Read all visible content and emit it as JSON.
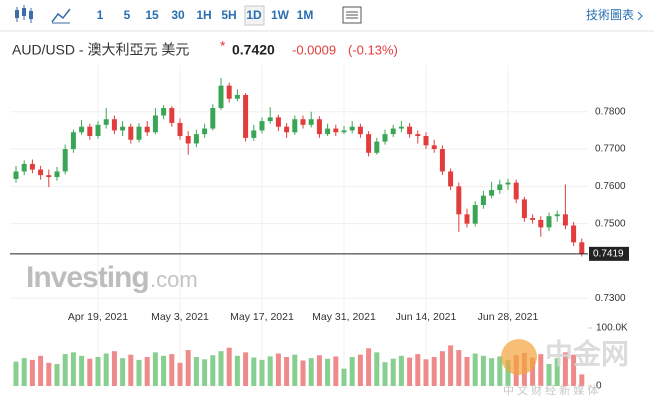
{
  "toolbar": {
    "intervals": [
      "1",
      "5",
      "15",
      "30",
      "1H",
      "5H",
      "1D",
      "1W",
      "1M"
    ],
    "selected": "1D",
    "link": "技術圖表"
  },
  "header": {
    "pair": "AUD/USD - 澳大利亞元 美元",
    "star": "*",
    "price": "0.7420",
    "change": "-0.0009",
    "change_pct": "(-0.13%)"
  },
  "watermark": {
    "brand": "Investing",
    "domain": ".com",
    "logo": "中金网",
    "slogan": "中 文 财 经 新 媒 体"
  },
  "chart_data": [
    {
      "type": "candlestick",
      "categories": [
        null,
        null,
        null,
        null,
        null,
        null,
        null,
        null,
        null,
        null,
        "Apr 19, 2021",
        null,
        null,
        null,
        null,
        null,
        null,
        null,
        null,
        null,
        "May 3, 2021",
        null,
        null,
        null,
        null,
        null,
        null,
        null,
        null,
        null,
        "May 17, 2021",
        null,
        null,
        null,
        null,
        null,
        null,
        null,
        null,
        null,
        "May 31, 2021",
        null,
        null,
        null,
        null,
        null,
        null,
        null,
        null,
        null,
        "Jun 14, 2021",
        null,
        null,
        null,
        null,
        null,
        null,
        null,
        null,
        null,
        "Jun 28, 2021",
        null,
        null,
        null,
        null,
        null,
        null,
        null,
        null,
        null
      ],
      "open": [
        0.762,
        0.764,
        0.766,
        0.7645,
        0.763,
        0.7625,
        0.764,
        0.77,
        0.7745,
        0.776,
        0.7735,
        0.7765,
        0.778,
        0.775,
        0.776,
        0.7725,
        0.776,
        0.7745,
        0.779,
        0.781,
        0.777,
        0.7735,
        0.7715,
        0.774,
        0.7755,
        0.781,
        0.787,
        0.7835,
        0.7845,
        0.773,
        0.775,
        0.7775,
        0.7785,
        0.776,
        0.7745,
        0.778,
        0.7765,
        0.778,
        0.774,
        0.7755,
        0.7745,
        0.775,
        0.776,
        0.774,
        0.769,
        0.772,
        0.774,
        0.7755,
        0.776,
        0.774,
        0.7735,
        0.771,
        0.77,
        0.764,
        0.76,
        0.7525,
        0.75,
        0.755,
        0.7575,
        0.759,
        0.7605,
        0.761,
        0.7565,
        0.7515,
        0.751,
        0.749,
        0.752,
        0.7525,
        0.7495,
        0.745
      ],
      "high": [
        0.7655,
        0.767,
        0.7672,
        0.7655,
        0.7645,
        0.7652,
        0.7712,
        0.7752,
        0.7778,
        0.7768,
        0.7775,
        0.781,
        0.779,
        0.7775,
        0.7768,
        0.777,
        0.7775,
        0.781,
        0.7818,
        0.7815,
        0.7782,
        0.7748,
        0.7752,
        0.7768,
        0.782,
        0.7891,
        0.7878,
        0.786,
        0.785,
        0.7765,
        0.7785,
        0.7812,
        0.7792,
        0.777,
        0.779,
        0.779,
        0.78,
        0.7788,
        0.7768,
        0.7765,
        0.7762,
        0.7775,
        0.7768,
        0.7748,
        0.773,
        0.7752,
        0.7765,
        0.7775,
        0.777,
        0.775,
        0.7745,
        0.7725,
        0.771,
        0.7648,
        0.761,
        0.754,
        0.756,
        0.7588,
        0.7612,
        0.7618,
        0.762,
        0.7618,
        0.7572,
        0.7525,
        0.752,
        0.753,
        0.7535,
        0.7605,
        0.7505,
        0.746
      ],
      "low": [
        0.761,
        0.763,
        0.7635,
        0.7618,
        0.7598,
        0.7615,
        0.7632,
        0.769,
        0.7738,
        0.7725,
        0.7728,
        0.7755,
        0.774,
        0.7735,
        0.7715,
        0.7718,
        0.7735,
        0.774,
        0.778,
        0.776,
        0.7725,
        0.7685,
        0.7705,
        0.773,
        0.775,
        0.7805,
        0.7825,
        0.7828,
        0.772,
        0.7722,
        0.7742,
        0.7768,
        0.7748,
        0.773,
        0.7738,
        0.7755,
        0.7758,
        0.773,
        0.7735,
        0.7735,
        0.774,
        0.7742,
        0.773,
        0.768,
        0.7685,
        0.7712,
        0.7732,
        0.7745,
        0.773,
        0.7715,
        0.77,
        0.769,
        0.763,
        0.759,
        0.7478,
        0.749,
        0.7492,
        0.754,
        0.7568,
        0.758,
        0.759,
        0.7555,
        0.7505,
        0.75,
        0.7465,
        0.748,
        0.7505,
        0.7485,
        0.744,
        0.7412
      ],
      "close": [
        0.764,
        0.766,
        0.7645,
        0.763,
        0.7625,
        0.764,
        0.77,
        0.7745,
        0.776,
        0.7735,
        0.7765,
        0.778,
        0.775,
        0.776,
        0.7725,
        0.776,
        0.7745,
        0.779,
        0.781,
        0.777,
        0.7735,
        0.7715,
        0.774,
        0.7755,
        0.781,
        0.787,
        0.7835,
        0.7845,
        0.773,
        0.775,
        0.7775,
        0.7785,
        0.776,
        0.7745,
        0.778,
        0.7765,
        0.778,
        0.774,
        0.7755,
        0.7745,
        0.775,
        0.776,
        0.774,
        0.769,
        0.772,
        0.774,
        0.7755,
        0.776,
        0.774,
        0.7735,
        0.771,
        0.77,
        0.764,
        0.76,
        0.7525,
        0.75,
        0.755,
        0.7575,
        0.759,
        0.7605,
        0.761,
        0.7565,
        0.7515,
        0.751,
        0.749,
        0.752,
        0.7525,
        0.7495,
        0.745,
        0.742
      ],
      "up_color": "#3aa655",
      "down_color": "#e23c3c",
      "ylim": [
        0.7247,
        0.7912
      ],
      "yticks": [
        {
          "value": 0.78,
          "label": "0.7800"
        },
        {
          "value": 0.77,
          "label": "0.7700"
        },
        {
          "value": 0.76,
          "label": "0.7600"
        },
        {
          "value": 0.75,
          "label": "0.7500"
        },
        {
          "value": 0.73,
          "label": "0.7300"
        }
      ],
      "last_price": {
        "value": 0.7419,
        "label": "0.7419"
      },
      "grid": true
    },
    {
      "type": "volume",
      "values": [
        42000,
        48000,
        45000,
        52000,
        40000,
        38000,
        55000,
        58000,
        52000,
        47000,
        50000,
        56000,
        60000,
        48000,
        54000,
        45000,
        50000,
        58000,
        52000,
        55000,
        40000,
        62000,
        50000,
        46000,
        53000,
        60000,
        66000,
        52000,
        58000,
        49000,
        45000,
        51000,
        56000,
        50000,
        54000,
        44000,
        48000,
        53000,
        47000,
        51000,
        30000,
        50000,
        54000,
        65000,
        58000,
        41000,
        47000,
        52000,
        49000,
        55000,
        46000,
        50000,
        60000,
        70000,
        62000,
        50000,
        56000,
        52000,
        48000,
        51000,
        45000,
        53000,
        57000,
        49000,
        55000,
        38000,
        48000,
        58000,
        54000,
        20000
      ],
      "up_color": "#86cf8e",
      "down_color": "#ef8a8a",
      "ylim": [
        0,
        100000
      ],
      "yticks": [
        {
          "value": 100000,
          "label": "100.0K"
        },
        {
          "value": 0,
          "label": "0"
        }
      ]
    }
  ]
}
